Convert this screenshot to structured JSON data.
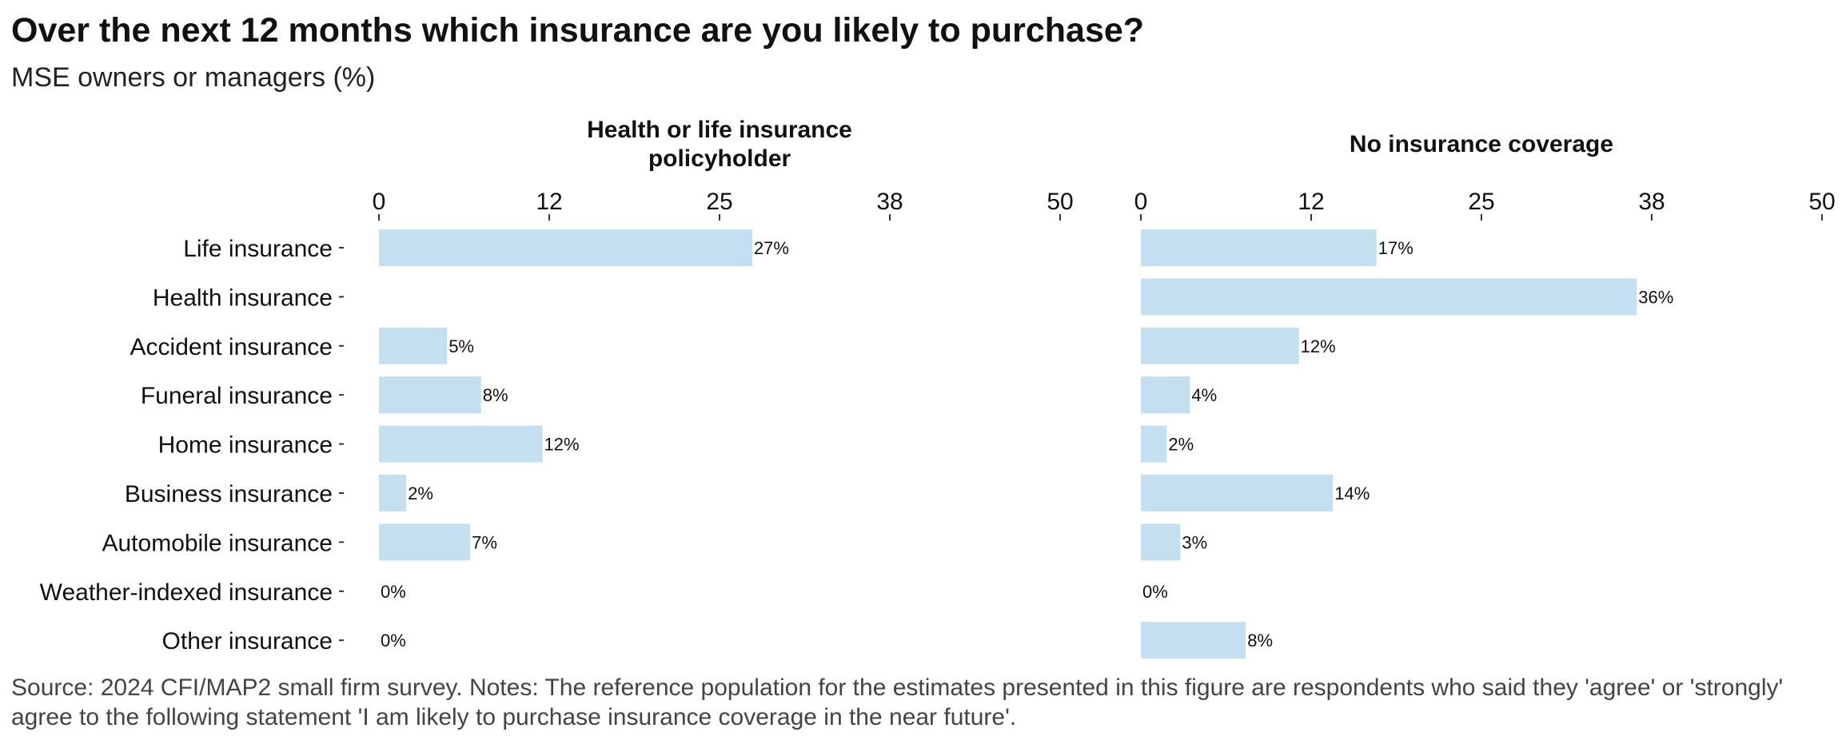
{
  "title": "Over the next 12 months which insurance are you likely to purchase?",
  "subtitle": "MSE owners or managers (%)",
  "caption": "Source: 2024 CFI/MAP2 small firm survey. Notes: The reference population for the estimates presented in this figure are respondents who said they 'agree' or 'strongly' agree to the following statement 'I am likely to purchase insurance coverage in the near future'.",
  "colors": {
    "bar": "#c4dff0",
    "axis_tick": "#333333"
  },
  "chart_data": {
    "type": "bar",
    "orientation": "horizontal",
    "categories": [
      "Life insurance",
      "Health insurance",
      "Accident insurance",
      "Funeral insurance",
      "Home insurance",
      "Business insurance",
      "Automobile insurance",
      "Weather-indexed insurance",
      "Other insurance"
    ],
    "xlim": [
      0,
      50
    ],
    "xticks": [
      "0",
      "12",
      "25",
      "38",
      "50"
    ],
    "xtick_values": [
      0,
      12.5,
      25,
      37.5,
      50
    ],
    "axis_position": "top",
    "grid": false,
    "legend": "none",
    "panels": [
      {
        "title_lines": [
          "Health or life insurance",
          "policyholder"
        ],
        "values": [
          27.4,
          null,
          5,
          7.5,
          12,
          2,
          6.7,
          0,
          0
        ],
        "labels": [
          "27%",
          "",
          "5%",
          "8%",
          "12%",
          "2%",
          "7%",
          "0%",
          "0%"
        ]
      },
      {
        "title_lines": [
          "No insurance coverage"
        ],
        "values": [
          17.3,
          36.4,
          11.6,
          3.6,
          1.9,
          14.1,
          2.9,
          0,
          7.7
        ],
        "labels": [
          "17%",
          "36%",
          "12%",
          "4%",
          "2%",
          "14%",
          "3%",
          "0%",
          "8%"
        ]
      }
    ]
  }
}
